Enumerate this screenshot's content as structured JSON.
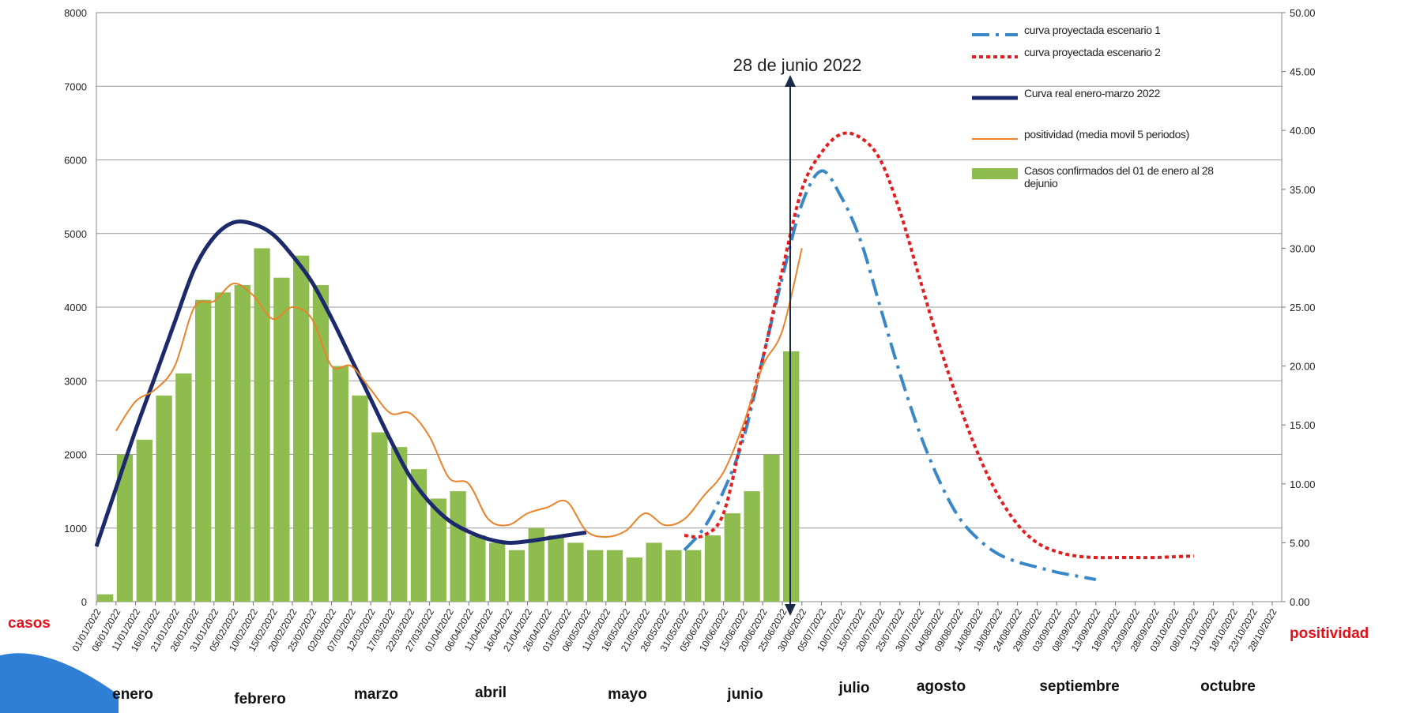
{
  "chart_data": {
    "type": "bar",
    "annotation": "28 de junio 2022",
    "y_label": "casos",
    "y2_label": "positividad",
    "categories": [
      "01/01/2022",
      "06/01/2022",
      "11/01/2022",
      "16/01/2022",
      "21/01/2022",
      "26/01/2022",
      "31/01/2022",
      "05/02/2022",
      "10/02/2022",
      "15/02/2022",
      "20/02/2022",
      "25/02/2022",
      "02/03/2022",
      "07/03/2022",
      "12/03/2022",
      "17/03/2022",
      "22/03/2022",
      "27/03/2022",
      "01/04/2022",
      "06/04/2022",
      "11/04/2022",
      "16/04/2022",
      "21/04/2022",
      "26/04/2022",
      "01/05/2022",
      "06/05/2022",
      "11/05/2022",
      "16/05/2022",
      "21/05/2022",
      "26/05/2022",
      "31/05/2022",
      "05/06/2022",
      "10/06/2022",
      "15/06/2022",
      "20/06/2022",
      "25/06/2022",
      "30/06/2022",
      "05/07/2022",
      "10/07/2022",
      "15/07/2022",
      "20/07/2022",
      "25/07/2022",
      "30/07/2022",
      "04/08/2022",
      "09/08/2022",
      "14/08/2022",
      "19/08/2022",
      "24/08/2022",
      "29/08/2022",
      "03/09/2022",
      "08/09/2022",
      "13/09/2022",
      "18/09/2022",
      "23/09/2022",
      "28/09/2022",
      "03/10/2022",
      "08/10/2022",
      "13/10/2022",
      "18/10/2022",
      "23/10/2022",
      "28/10/2022"
    ],
    "month_labels": [
      "enero",
      "febrero",
      "marzo",
      "abril",
      "mayo",
      "junio",
      "julio",
      "agosto",
      "septiembre",
      "octubre"
    ],
    "series": [
      {
        "name": "curva proyectada  escenario 1",
        "type": "line",
        "style": "dashdot",
        "color": "#3a87c8",
        "values": [
          null,
          null,
          null,
          null,
          null,
          null,
          null,
          null,
          null,
          null,
          null,
          null,
          null,
          null,
          null,
          null,
          null,
          null,
          null,
          null,
          null,
          null,
          null,
          null,
          null,
          null,
          null,
          null,
          null,
          null,
          700,
          1000,
          1500,
          2200,
          3300,
          4400,
          5400,
          5850,
          5500,
          4900,
          4000,
          3100,
          2300,
          1650,
          1150,
          850,
          650,
          540,
          470,
          400,
          350,
          300,
          null,
          null,
          null,
          null,
          null,
          null,
          null,
          null,
          null
        ]
      },
      {
        "name": "curva proyectada escenario 2",
        "type": "line",
        "style": "dotted",
        "color": "#e02020",
        "values": [
          null,
          null,
          null,
          null,
          null,
          null,
          null,
          null,
          null,
          null,
          null,
          null,
          null,
          null,
          null,
          null,
          null,
          null,
          null,
          null,
          null,
          null,
          null,
          null,
          null,
          null,
          null,
          null,
          null,
          null,
          900,
          900,
          1200,
          2300,
          3300,
          4500,
          5600,
          6100,
          6350,
          6300,
          6000,
          5300,
          4400,
          3500,
          2700,
          2000,
          1450,
          1050,
          800,
          680,
          620,
          600,
          600,
          600,
          600,
          610,
          620,
          null,
          null,
          null,
          null
        ]
      },
      {
        "name": "Curva real enero-marzo 2022",
        "type": "line",
        "style": "thick",
        "color": "#1c2a6b",
        "values": [
          750,
          1540,
          2330,
          3060,
          3800,
          4520,
          4950,
          5150,
          5130,
          4990,
          4700,
          4340,
          3850,
          3300,
          2750,
          2200,
          1700,
          1350,
          1100,
          950,
          850,
          800,
          820,
          860,
          900,
          940,
          null,
          null,
          null,
          null,
          null,
          null,
          null,
          null,
          null,
          null,
          null,
          null,
          null,
          null,
          null,
          null,
          null,
          null,
          null,
          null,
          null,
          null,
          null,
          null,
          null,
          null,
          null,
          null,
          null,
          null,
          null,
          null,
          null,
          null,
          null
        ]
      },
      {
        "name": "positividad (media movil 5 periodos)",
        "type": "line",
        "style": "thin",
        "axis": "y2",
        "color": "#e8832a",
        "values": [
          null,
          14.5,
          17,
          18,
          20,
          25,
          25.5,
          27,
          26,
          24,
          25,
          24,
          20,
          20,
          18,
          16,
          16,
          14,
          10.5,
          10,
          7,
          6.5,
          7.5,
          8,
          8.5,
          6,
          5.5,
          6,
          7.5,
          6.5,
          7,
          9,
          11,
          15,
          20,
          23,
          30,
          null,
          null,
          null,
          null,
          null,
          null,
          null,
          null,
          null,
          null,
          null,
          null,
          null,
          null,
          null,
          null,
          null,
          null,
          null,
          null,
          null,
          null,
          null,
          null
        ]
      },
      {
        "name": "Casos confirmados del 01 de enero al 28 dejunio",
        "type": "bar",
        "color": "#8fbc4f",
        "values": [
          100,
          2000,
          2200,
          2800,
          3100,
          4100,
          4200,
          4300,
          4800,
          4400,
          4700,
          4300,
          3200,
          2800,
          2300,
          2100,
          1800,
          1400,
          1500,
          900,
          800,
          700,
          1000,
          900,
          800,
          700,
          700,
          600,
          800,
          700,
          700,
          900,
          1200,
          1500,
          2000,
          3400,
          null,
          null,
          null,
          null,
          null,
          null,
          null,
          null,
          null,
          null,
          null,
          null,
          null,
          null,
          null,
          null,
          null,
          null,
          null,
          null,
          null,
          null,
          null,
          null,
          null
        ]
      }
    ],
    "ylim": [
      0,
      8000
    ],
    "yticks": [
      0,
      1000,
      2000,
      3000,
      4000,
      5000,
      6000,
      7000,
      8000
    ],
    "y2lim": [
      0,
      50
    ],
    "y2ticks": [
      {
        "value": 0,
        "label": "0.00"
      },
      {
        "value": 5,
        "label": "5.00"
      },
      {
        "value": 10,
        "label": "10.00"
      },
      {
        "value": 15,
        "label": "15.00"
      },
      {
        "value": 20,
        "label": "20.00"
      },
      {
        "value": 25,
        "label": "25.00"
      },
      {
        "value": 30,
        "label": "30.00"
      },
      {
        "value": 35,
        "label": "35.00"
      },
      {
        "value": 40,
        "label": "40.00"
      },
      {
        "value": 45,
        "label": "45.00"
      },
      {
        "value": 50,
        "label": "50.00"
      }
    ],
    "grid": true,
    "legend": "upper right"
  }
}
